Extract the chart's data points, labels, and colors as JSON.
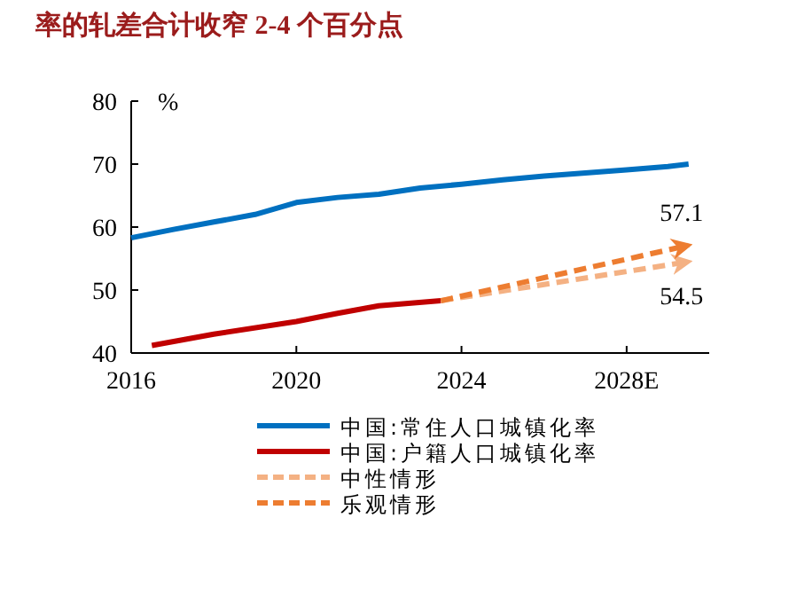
{
  "chart_data": {
    "type": "line",
    "title": "率的轧差合计收窄 2-4 个百分点",
    "ylabel": "%",
    "xlim": [
      2016,
      2030
    ],
    "xticks": [
      2016,
      2020,
      2024,
      {
        "value": 2028,
        "label": "2028E"
      }
    ],
    "ylim": [
      40,
      80
    ],
    "yticks": [
      40,
      50,
      60,
      70,
      80
    ],
    "legend": "bottom",
    "series": [
      {
        "name": "中国:常住人口城镇化率",
        "color": "#0070c0",
        "line_style": "solid",
        "x": [
          2016,
          2017,
          2018,
          2019,
          2020,
          2021,
          2022,
          2023,
          2024,
          2025,
          2026,
          2027,
          2028,
          2029,
          2029.5
        ],
        "values": [
          58.3,
          59.6,
          60.8,
          62.0,
          63.9,
          64.7,
          65.2,
          66.2,
          66.8,
          67.5,
          68.1,
          68.6,
          69.1,
          69.6,
          70.0
        ]
      },
      {
        "name": "中国:户籍人口城镇化率",
        "color": "#c00000",
        "line_style": "solid",
        "x": [
          2016.5,
          2018,
          2020,
          2021,
          2022,
          2023.5
        ],
        "values": [
          41.2,
          43.0,
          45.0,
          46.3,
          47.5,
          48.3
        ]
      },
      {
        "name": "中性情形",
        "color": "#f4b183",
        "line_style": "dashed",
        "x": [
          2023.5,
          2029.5
        ],
        "values": [
          48.3,
          54.5
        ]
      },
      {
        "name": "乐观情形",
        "color": "#ed7d31",
        "line_style": "dashed",
        "x": [
          2023.5,
          2029.5
        ],
        "values": [
          48.3,
          57.1
        ]
      }
    ],
    "annotations": [
      {
        "text": "57.1",
        "x": 2029.5,
        "y": 57.1
      },
      {
        "text": "54.5",
        "x": 2029.5,
        "y": 54.5
      }
    ]
  }
}
